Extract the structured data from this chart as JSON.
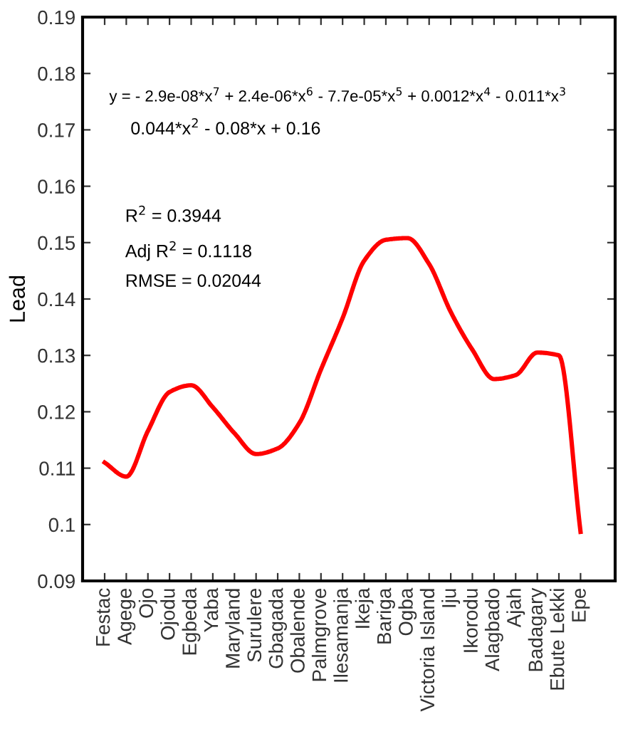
{
  "chart_data": {
    "type": "line",
    "ylabel": "Lead",
    "ylim": [
      0.09,
      0.19
    ],
    "yticks": [
      0.09,
      0.1,
      0.11,
      0.12,
      0.13,
      0.14,
      0.15,
      0.16,
      0.17,
      0.18,
      0.19
    ],
    "categories": [
      "Festac",
      "Agege",
      "Ojo",
      "Ojodu",
      "Egbeda",
      "Yaba",
      "Maryland",
      "Surulere",
      "Gbagada",
      "Obalende",
      "Palmgrove",
      "Ilesamanja",
      "Ikeja",
      "Bariga",
      "Ogba",
      "Victoria Island",
      "Iju",
      "Ikorodu",
      "Alagbado",
      "Ajah",
      "Badagary",
      "Ebute Lekki",
      "Epe"
    ],
    "grid": false,
    "marker": "none",
    "line_style": "solid",
    "series": [
      {
        "color": "#ff0000",
        "values": [
          0.111,
          0.1085,
          0.1166,
          0.1235,
          0.1247,
          0.1208,
          0.1162,
          0.1125,
          0.1135,
          0.118,
          0.1275,
          0.1366,
          0.1468,
          0.1505,
          0.1508,
          0.1462,
          0.1377,
          0.131,
          0.1258,
          0.1265,
          0.1305,
          0.13,
          0.0987
        ]
      }
    ],
    "annotations": [
      "y = - 2.9e-08*x$^{7}$ + 2.4e-06*x$^{6}$ - 7.7e-05*x$^{5}$ + 0.0012*x$^{4}$ - 0.011*x$^{3}$",
      "0.044*x$^{2}$ - 0.08*x + 0.16",
      "R$^{2}$ = 0.3944",
      "Adj R$^{2}$ = 0.1118",
      "RMSE = 0.02044"
    ]
  }
}
